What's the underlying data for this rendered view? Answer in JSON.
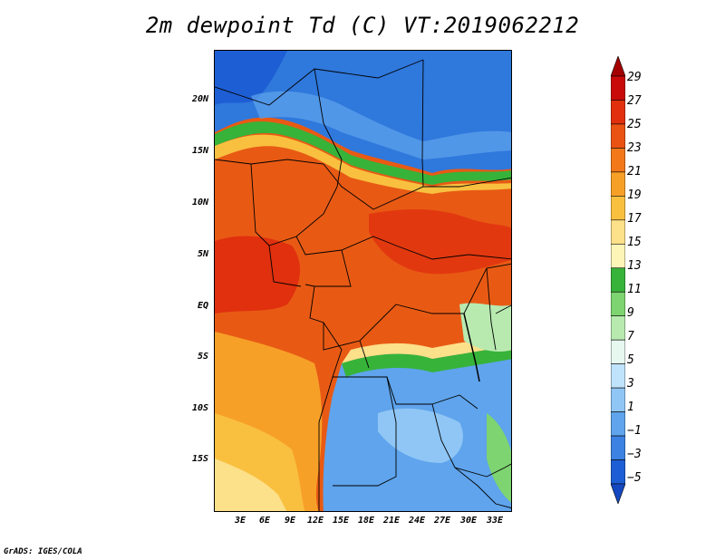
{
  "title": "2m dewpoint Td (C) VT:2019062212",
  "credit": "GrADS: IGES/COLA",
  "lat_labels": [
    "20N",
    "15N",
    "10N",
    "5N",
    "EQ",
    "5S",
    "10S",
    "15S"
  ],
  "lon_labels": [
    "3E",
    "6E",
    "9E",
    "12E",
    "15E",
    "18E",
    "21E",
    "24E",
    "27E",
    "30E",
    "33E"
  ],
  "colorbar": {
    "labels": [
      "29",
      "27",
      "25",
      "23",
      "21",
      "19",
      "17",
      "15",
      "13",
      "11",
      "9",
      "7",
      "5",
      "3",
      "1",
      "−1",
      "−3",
      "−5"
    ],
    "colors": [
      "#a50000",
      "#c80a0a",
      "#e0300e",
      "#ea5214",
      "#f2781a",
      "#f7a028",
      "#f9c040",
      "#fde08a",
      "#fdf4b8",
      "#37b33a",
      "#7ed470",
      "#b8eab0",
      "#e6f8f0",
      "#bfe3fa",
      "#8fc6f5",
      "#5fa4ec",
      "#3b82e2",
      "#1e5ed4",
      "#1448c0"
    ]
  },
  "map_colors": {
    "desert": "#2f78dc",
    "deep_blue": "#1e5ed4",
    "light_blue": "#8fc6f5",
    "green": "#37b33a",
    "light_green": "#7ed470",
    "yellow": "#f9c040",
    "light_yellow": "#fde08a",
    "orange": "#f2781a",
    "dark_orange": "#e85a14",
    "red": "#e0300e",
    "border": "#000000"
  }
}
